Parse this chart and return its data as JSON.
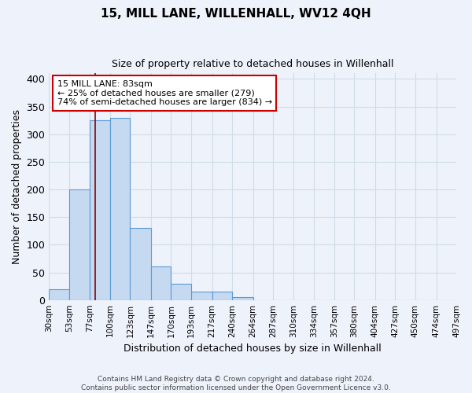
{
  "title": "15, MILL LANE, WILLENHALL, WV12 4QH",
  "subtitle": "Size of property relative to detached houses in Willenhall",
  "xlabel": "Distribution of detached houses by size in Willenhall",
  "ylabel": "Number of detached properties",
  "bin_edges": [
    30,
    53,
    77,
    100,
    123,
    147,
    170,
    193,
    217,
    240,
    264,
    287,
    310,
    334,
    357,
    380,
    404,
    427,
    450,
    474,
    497
  ],
  "bar_heights": [
    20,
    200,
    325,
    330,
    130,
    60,
    30,
    15,
    15,
    5,
    0,
    0,
    0,
    0,
    0,
    0,
    0,
    0,
    0,
    0
  ],
  "bar_color": "#c5d9f0",
  "bar_edge_color": "#5b9bd5",
  "grid_color": "#d0dce8",
  "background_color": "#eef2fb",
  "red_line_x": 83,
  "annotation_line1": "15 MILL LANE: 83sqm",
  "annotation_line2": "← 25% of detached houses are smaller (279)",
  "annotation_line3": "74% of semi-detached houses are larger (834) →",
  "annotation_box_color": "white",
  "annotation_box_edge_color": "#cc0000",
  "ylim": [
    0,
    410
  ],
  "yticks": [
    0,
    50,
    100,
    150,
    200,
    250,
    300,
    350,
    400
  ],
  "footer_line1": "Contains HM Land Registry data © Crown copyright and database right 2024.",
  "footer_line2": "Contains public sector information licensed under the Open Government Licence v3.0."
}
